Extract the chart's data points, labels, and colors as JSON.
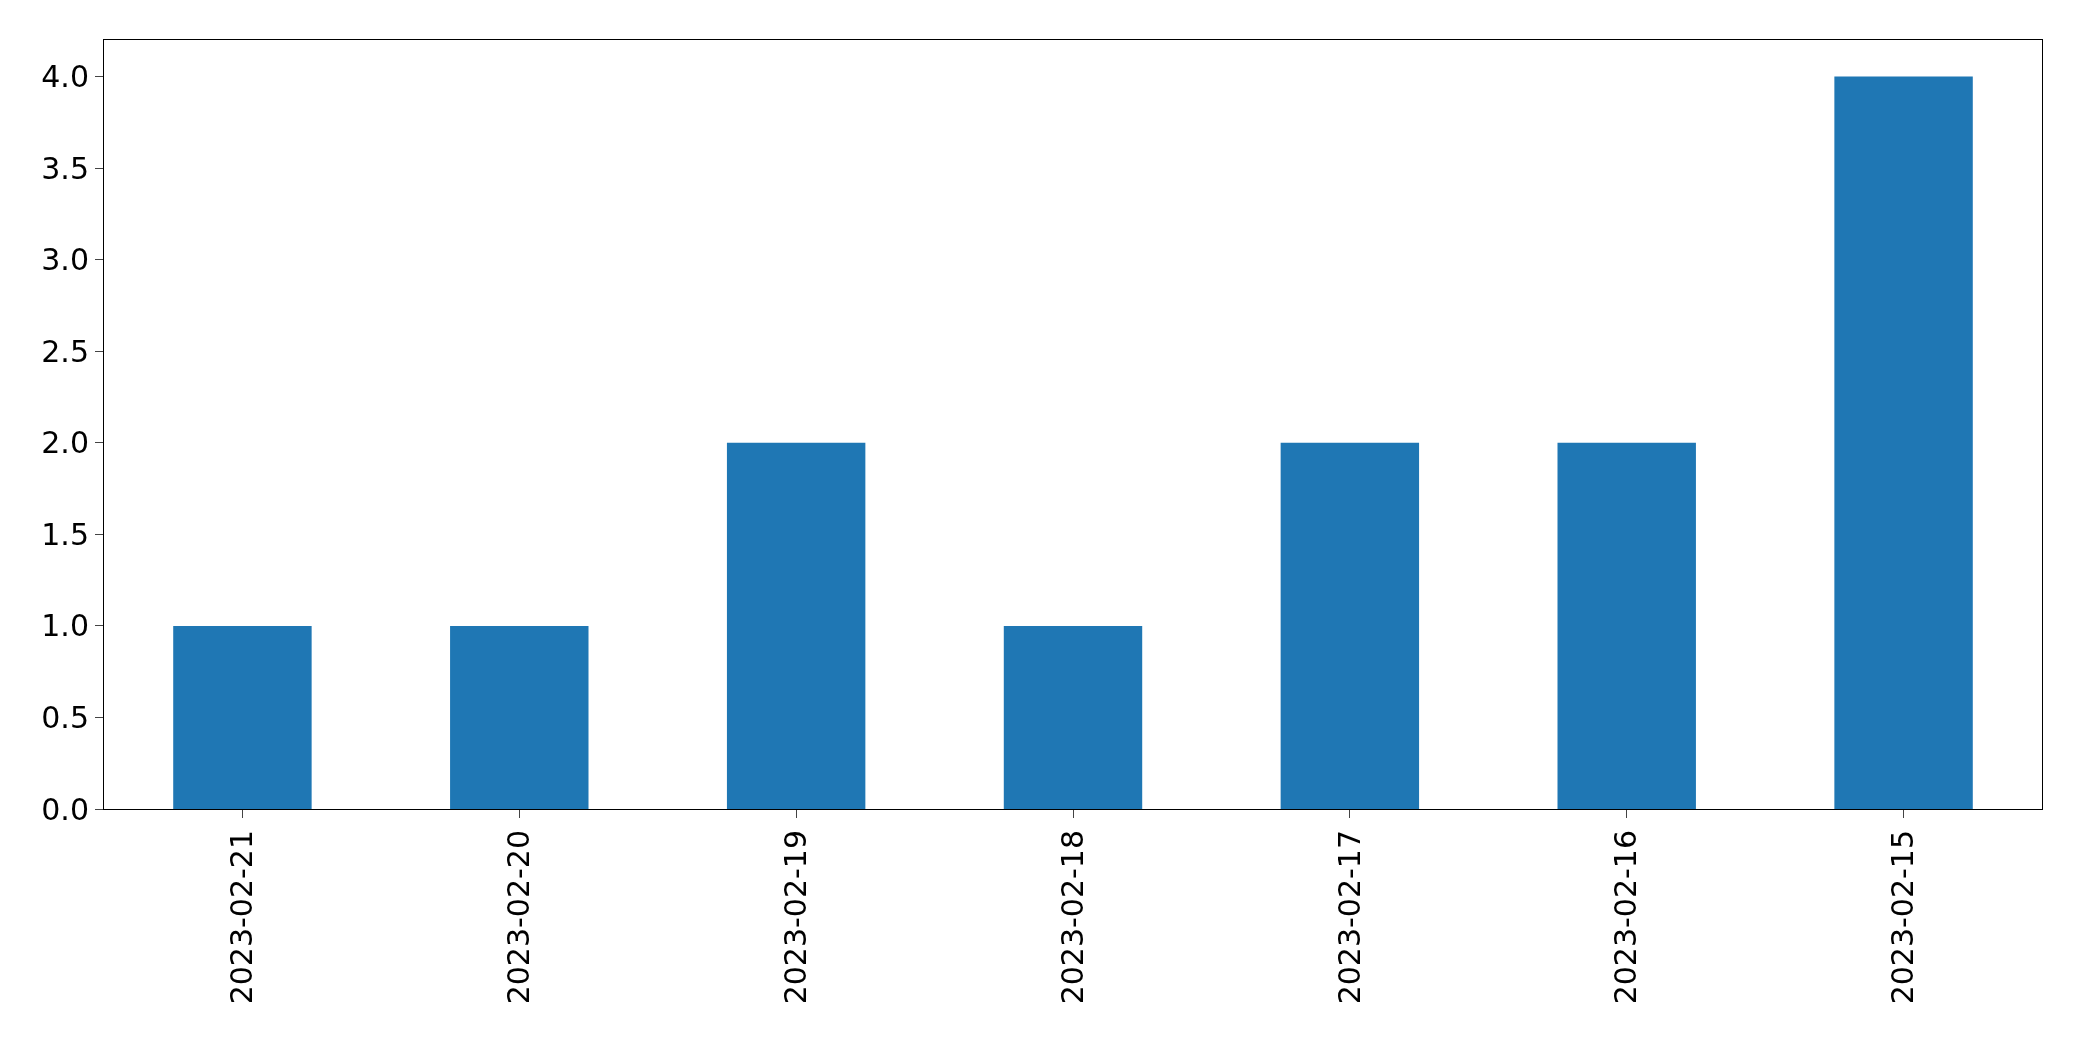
{
  "chart_data": {
    "type": "bar",
    "categories": [
      "2023-02-21",
      "2023-02-20",
      "2023-02-19",
      "2023-02-18",
      "2023-02-17",
      "2023-02-16",
      "2023-02-15"
    ],
    "values": [
      1,
      1,
      2,
      1,
      2,
      2,
      4
    ],
    "color": "#1f77b4",
    "ylim": [
      0,
      4.2
    ],
    "yticks": [
      {
        "value": 0,
        "label": "0.0"
      },
      {
        "value": 0.5,
        "label": "0.5"
      },
      {
        "value": 1,
        "label": "1.0"
      },
      {
        "value": 1.5,
        "label": "1.5"
      },
      {
        "value": 2,
        "label": "2.0"
      },
      {
        "value": 2.5,
        "label": "2.5"
      },
      {
        "value": 3,
        "label": "3.0"
      },
      {
        "value": 3.5,
        "label": "3.5"
      },
      {
        "value": 4,
        "label": "4.0"
      }
    ],
    "grid": false,
    "legend": false
  }
}
